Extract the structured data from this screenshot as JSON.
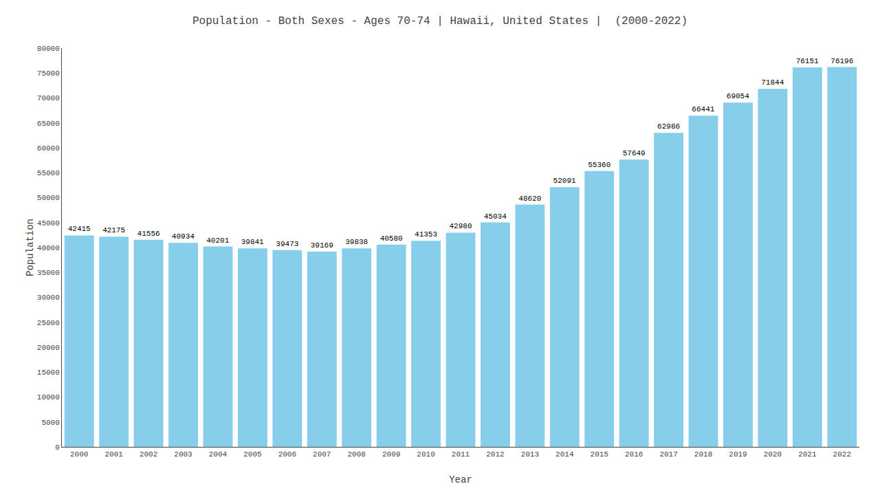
{
  "chart_data": {
    "type": "bar",
    "title": "Population - Both Sexes - Ages 70-74 | Hawaii, United States |  (2000-2022)",
    "xlabel": "Year",
    "ylabel": "Population",
    "categories": [
      "2000",
      "2001",
      "2002",
      "2003",
      "2004",
      "2005",
      "2006",
      "2007",
      "2008",
      "2009",
      "2010",
      "2011",
      "2012",
      "2013",
      "2014",
      "2015",
      "2016",
      "2017",
      "2018",
      "2019",
      "2020",
      "2021",
      "2022"
    ],
    "values": [
      42415,
      42175,
      41556,
      40934,
      40201,
      39841,
      39473,
      39169,
      39838,
      40580,
      41353,
      42980,
      45034,
      48620,
      52091,
      55360,
      57649,
      62986,
      66441,
      69054,
      71844,
      76151,
      76196
    ],
    "color": "#87CEEB",
    "ylim": [
      0,
      80000
    ],
    "yticks": [
      0,
      5000,
      10000,
      15000,
      20000,
      25000,
      30000,
      35000,
      40000,
      45000,
      50000,
      55000,
      60000,
      65000,
      70000,
      75000,
      80000
    ],
    "grid": false,
    "data_labels": true
  }
}
